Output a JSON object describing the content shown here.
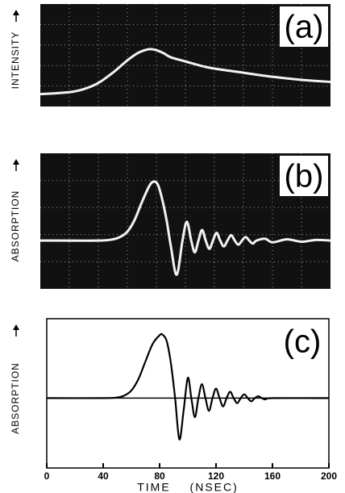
{
  "chart_data": [
    {
      "type": "line",
      "label": "(a)",
      "ylabel": "INTENSITY",
      "x": [
        0,
        20,
        30,
        40,
        50,
        60,
        67,
        72,
        76,
        80,
        85,
        90,
        100,
        110,
        120,
        140,
        160,
        180,
        200
      ],
      "values": [
        0.12,
        0.14,
        0.17,
        0.23,
        0.33,
        0.45,
        0.52,
        0.55,
        0.56,
        0.55,
        0.52,
        0.48,
        0.44,
        0.4,
        0.37,
        0.33,
        0.29,
        0.26,
        0.24
      ],
      "xlim": [
        0,
        200
      ],
      "ylim": [
        0,
        1
      ],
      "grid": true,
      "background": "#111111",
      "color": "#f2f2f2"
    },
    {
      "type": "line",
      "label": "(b)",
      "ylabel": "ABSORPTION",
      "x": [
        0,
        40,
        50,
        55,
        60,
        65,
        70,
        75,
        78,
        81,
        84,
        87,
        90,
        94,
        98,
        101,
        104,
        106.5,
        109,
        111.5,
        114,
        116.5,
        119,
        121.5,
        124,
        126.5,
        129,
        131.5,
        134,
        136.5,
        139,
        141.5,
        144,
        146.5,
        149,
        155,
        160,
        170,
        180,
        190,
        200
      ],
      "values": [
        0,
        0,
        0.02,
        0.06,
        0.15,
        0.35,
        0.65,
        0.92,
        1.0,
        0.95,
        0.7,
        0.35,
        -0.1,
        -0.58,
        0,
        0.32,
        0,
        -0.2,
        0,
        0.18,
        0,
        -0.14,
        0,
        0.13,
        0,
        -0.1,
        0,
        0.09,
        0,
        -0.07,
        0,
        0.06,
        0,
        -0.05,
        0,
        0.03,
        -0.03,
        0.02,
        -0.02,
        0.01,
        0
      ],
      "xlim": [
        0,
        200
      ],
      "ylim": [
        -0.82,
        1.48
      ],
      "grid": true,
      "background": "#111111",
      "color": "#f2f2f2"
    },
    {
      "type": "line",
      "label": "(c)",
      "ylabel": "ABSORPTION",
      "xlabel": "TIME (NSEC)",
      "x": [
        0,
        40,
        50,
        55,
        60,
        65,
        70,
        75,
        80,
        82,
        85,
        88,
        91,
        94,
        97,
        100,
        102.5,
        105,
        107.5,
        110,
        112.5,
        115,
        117.5,
        120,
        122.5,
        125,
        127.5,
        130,
        132.5,
        135,
        137.5,
        140,
        142.5,
        145,
        147.5,
        150,
        152.5,
        155,
        160,
        200
      ],
      "values": [
        0,
        0,
        0.01,
        0.04,
        0.12,
        0.3,
        0.58,
        0.85,
        0.99,
        1.0,
        0.9,
        0.55,
        0,
        -0.65,
        -0.2,
        0.32,
        0,
        -0.3,
        0,
        0.22,
        0,
        -0.2,
        0,
        0.15,
        0,
        -0.13,
        0,
        0.1,
        0,
        -0.08,
        0,
        0.06,
        0,
        -0.05,
        0,
        0.03,
        0,
        -0.02,
        0,
        0
      ],
      "xlim": [
        0,
        200
      ],
      "ylim": [
        -1.1,
        1.25
      ],
      "xticks": [
        0,
        40,
        80,
        120,
        160,
        200
      ],
      "grid": false,
      "background": "#ffffff",
      "color": "#000000"
    }
  ]
}
